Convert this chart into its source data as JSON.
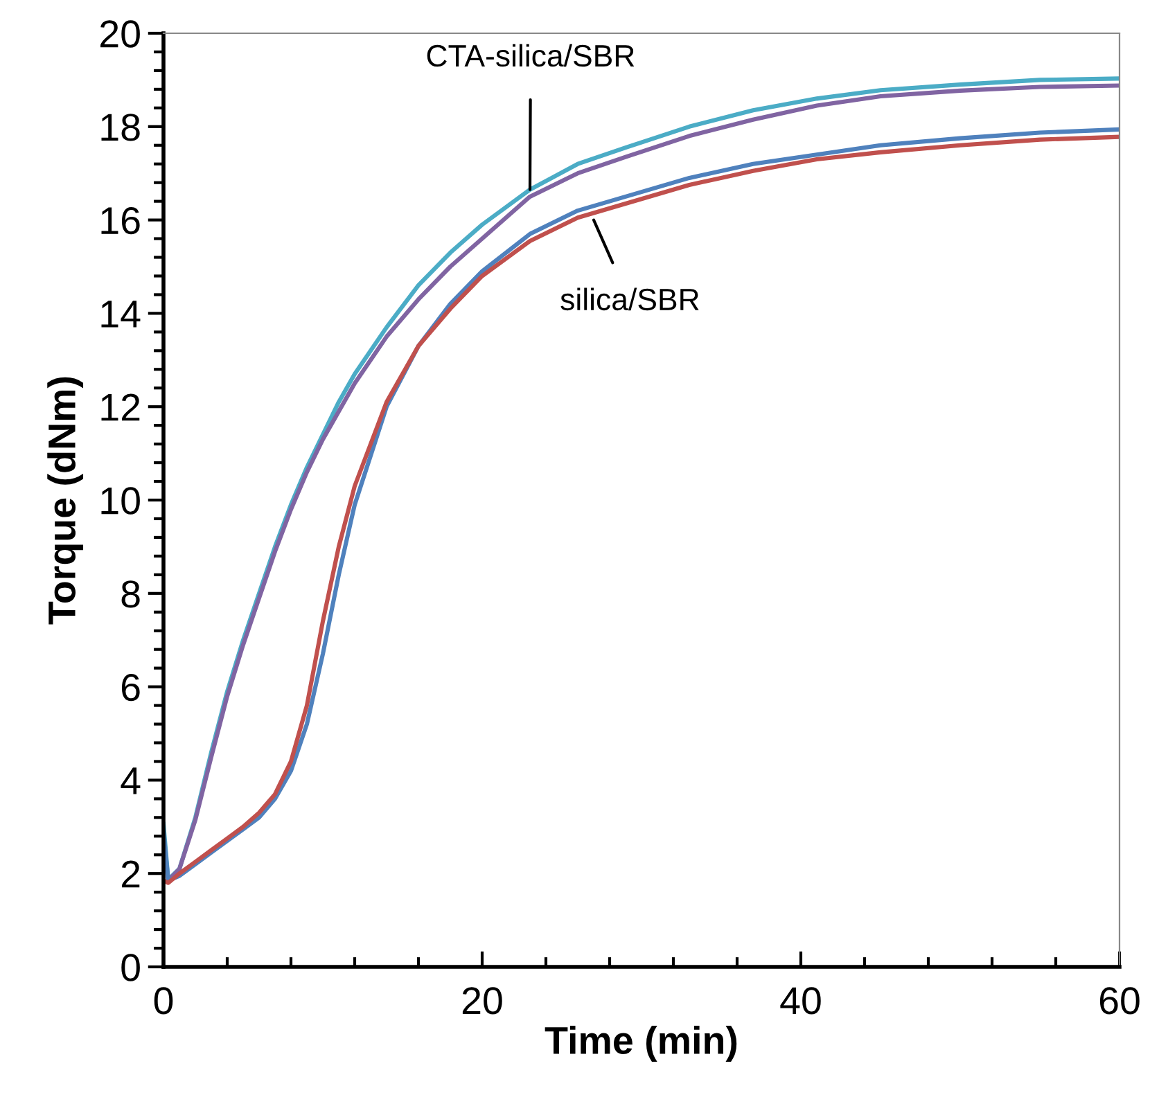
{
  "chart_data": {
    "type": "line",
    "xlabel": "Time (min)",
    "ylabel": "Torque (dNm)",
    "x": [
      0,
      0.3,
      1,
      2,
      3,
      4,
      5,
      6,
      7,
      8,
      9,
      10,
      11,
      12,
      14,
      16,
      18,
      20,
      23,
      26,
      29,
      33,
      37,
      41,
      45,
      50,
      55,
      60
    ],
    "series": [
      {
        "color": "#4bacc6",
        "values": [
          3.06,
          1.87,
          2.1,
          3.2,
          4.6,
          5.9,
          7.0,
          8.0,
          9.0,
          9.9,
          10.7,
          11.4,
          12.1,
          12.7,
          13.7,
          14.6,
          15.3,
          15.9,
          16.65,
          17.2,
          17.55,
          18.0,
          18.35,
          18.6,
          18.78,
          18.9,
          19.0,
          19.03
        ]
      },
      {
        "color": "#8064a2",
        "values": [
          2.6,
          1.85,
          2.1,
          3.15,
          4.5,
          5.8,
          6.9,
          7.9,
          8.9,
          9.8,
          10.6,
          11.3,
          11.9,
          12.5,
          13.5,
          14.3,
          15.0,
          15.6,
          16.5,
          17.0,
          17.35,
          17.8,
          18.15,
          18.45,
          18.65,
          18.77,
          18.85,
          18.88
        ]
      },
      {
        "color": "#4f81bd",
        "values": [
          2.9,
          1.85,
          1.95,
          2.2,
          2.45,
          2.7,
          2.95,
          3.2,
          3.6,
          4.2,
          5.2,
          6.7,
          8.4,
          9.9,
          12.0,
          13.3,
          14.2,
          14.9,
          15.7,
          16.2,
          16.5,
          16.9,
          17.2,
          17.4,
          17.6,
          17.75,
          17.87,
          17.94
        ]
      },
      {
        "color": "#c0504d",
        "values": [
          1.85,
          1.8,
          2.0,
          2.25,
          2.5,
          2.75,
          3.0,
          3.3,
          3.7,
          4.4,
          5.6,
          7.4,
          9.0,
          10.3,
          12.1,
          13.3,
          14.1,
          14.8,
          15.55,
          16.05,
          16.35,
          16.75,
          17.05,
          17.3,
          17.45,
          17.6,
          17.72,
          17.78
        ]
      }
    ],
    "annotations": [
      {
        "text": "CTA-silica/SBR",
        "x": 23,
        "y": 16.65
      },
      {
        "text": "silica/SBR",
        "x": 27,
        "y": 16.0
      }
    ],
    "xlim": [
      0,
      60
    ],
    "ylim": [
      0,
      20
    ],
    "xticks": [
      0,
      {
        "value": 4,
        "label": null
      },
      {
        "value": 8,
        "label": null
      },
      {
        "value": 12,
        "label": null
      },
      {
        "value": 16,
        "label": null
      },
      20,
      {
        "value": 24,
        "label": null
      },
      {
        "value": 28,
        "label": null
      },
      {
        "value": 32,
        "label": null
      },
      {
        "value": 36,
        "label": null
      },
      40,
      {
        "value": 44,
        "label": null
      },
      {
        "value": 48,
        "label": null
      },
      {
        "value": 52,
        "label": null
      },
      {
        "value": 56,
        "label": null
      },
      60
    ],
    "yticks": [
      0,
      {
        "value": 0.4,
        "label": null
      },
      {
        "value": 0.8,
        "label": null
      },
      {
        "value": 1.2,
        "label": null
      },
      {
        "value": 1.6,
        "label": null
      },
      2,
      {
        "value": 2.4,
        "label": null
      },
      {
        "value": 2.8,
        "label": null
      },
      {
        "value": 3.2,
        "label": null
      },
      {
        "value": 3.6,
        "label": null
      },
      4,
      {
        "value": 4.4,
        "label": null
      },
      {
        "value": 4.8,
        "label": null
      },
      {
        "value": 5.2,
        "label": null
      },
      {
        "value": 5.6,
        "label": null
      },
      6,
      {
        "value": 6.4,
        "label": null
      },
      {
        "value": 6.8,
        "label": null
      },
      {
        "value": 7.2,
        "label": null
      },
      {
        "value": 7.6,
        "label": null
      },
      8,
      {
        "value": 8.4,
        "label": null
      },
      {
        "value": 8.8,
        "label": null
      },
      {
        "value": 9.2,
        "label": null
      },
      {
        "value": 9.6,
        "label": null
      },
      10,
      {
        "value": 10.4,
        "label": null
      },
      {
        "value": 10.8,
        "label": null
      },
      {
        "value": 11.2,
        "label": null
      },
      {
        "value": 11.6,
        "label": null
      },
      12,
      {
        "value": 12.4,
        "label": null
      },
      {
        "value": 12.8,
        "label": null
      },
      {
        "value": 13.2,
        "label": null
      },
      {
        "value": 13.6,
        "label": null
      },
      14,
      {
        "value": 14.4,
        "label": null
      },
      {
        "value": 14.8,
        "label": null
      },
      {
        "value": 15.2,
        "label": null
      },
      {
        "value": 15.6,
        "label": null
      },
      16,
      {
        "value": 16.4,
        "label": null
      },
      {
        "value": 16.8,
        "label": null
      },
      {
        "value": 17.2,
        "label": null
      },
      {
        "value": 17.6,
        "label": null
      },
      18,
      {
        "value": 18.4,
        "label": null
      },
      {
        "value": 18.8,
        "label": null
      },
      {
        "value": 19.2,
        "label": null
      },
      {
        "value": 19.6,
        "label": null
      },
      20
    ],
    "grid": false,
    "marker": "none",
    "line_style": "solid"
  }
}
